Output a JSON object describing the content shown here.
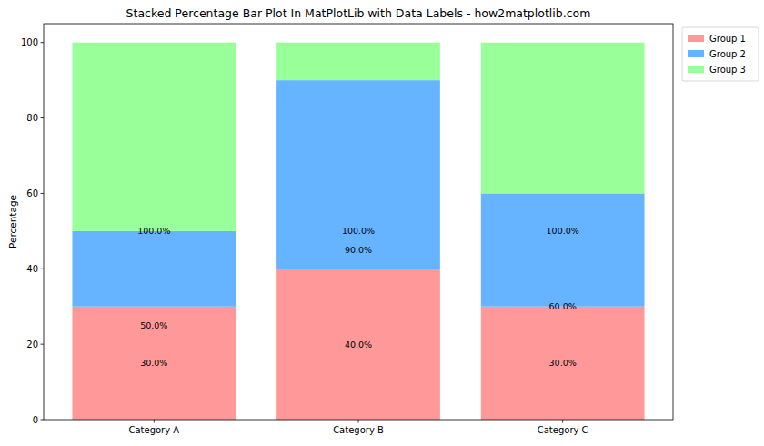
{
  "chart_data": {
    "type": "bar",
    "title": "Stacked Percentage Bar Plot In MatPlotLib with Data Labels - how2matplotlib.com",
    "y_label": "Percentage",
    "categories": [
      "Category A",
      "Category B",
      "Category C"
    ],
    "series": [
      {
        "name": "Group 1",
        "color": "#ff9999",
        "values": [
          30,
          40,
          30
        ]
      },
      {
        "name": "Group 2",
        "color": "#66b3ff",
        "values": [
          20,
          50,
          30
        ]
      },
      {
        "name": "Group 3",
        "color": "#99ff99",
        "values": [
          50,
          10,
          40
        ]
      }
    ],
    "stacked": true,
    "ylim": [
      0,
      105
    ],
    "yticks": [
      0,
      20,
      40,
      60,
      80,
      100
    ],
    "grid": false,
    "legend": "upper right",
    "annotations": [
      {
        "x": "Category A",
        "y": 15,
        "text": "30.0%"
      },
      {
        "x": "Category A",
        "y": 25,
        "text": "50.0%"
      },
      {
        "x": "Category A",
        "y": 50,
        "text": "100.0%"
      },
      {
        "x": "Category B",
        "y": 20,
        "text": "40.0%"
      },
      {
        "x": "Category B",
        "y": 45,
        "text": "90.0%"
      },
      {
        "x": "Category B",
        "y": 50,
        "text": "100.0%"
      },
      {
        "x": "Category C",
        "y": 15,
        "text": "30.0%"
      },
      {
        "x": "Category C",
        "y": 30,
        "text": "60.0%"
      },
      {
        "x": "Category C",
        "y": 50,
        "text": "100.0%"
      }
    ]
  }
}
